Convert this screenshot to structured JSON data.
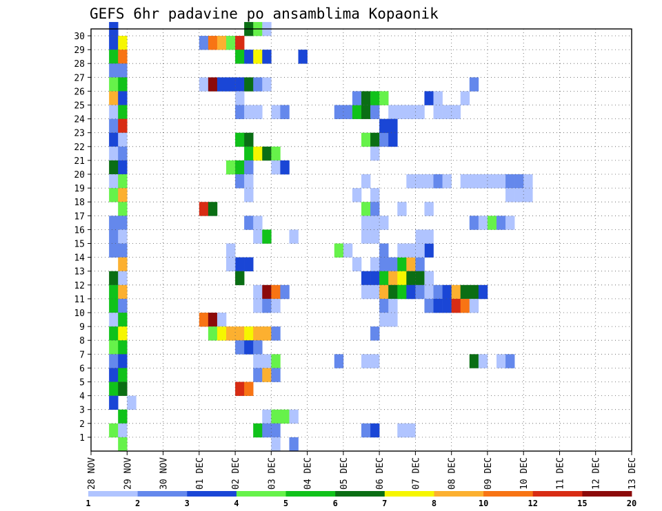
{
  "chart_data": {
    "type": "heatmap",
    "title": "GEFS 6hr padavine po ansamblima Kopaonik",
    "xlabel": "",
    "ylabel": "",
    "x_tick_labels": [
      "28 NOV",
      "29 NOV",
      "30 NOV",
      "01 DEC",
      "02 DEC",
      "03 DEC",
      "04 DEC",
      "05 DEC",
      "06 DEC",
      "07 DEC",
      "08 DEC",
      "09 DEC",
      "10 DEC",
      "11 DEC",
      "12 DEC",
      "13 DEC"
    ],
    "xlim": [
      0,
      60
    ],
    "y_tick_labels": [
      "1",
      "2",
      "3",
      "4",
      "5",
      "6",
      "7",
      "8",
      "9",
      "10",
      "11",
      "12",
      "13",
      "14",
      "15",
      "16",
      "17",
      "18",
      "19",
      "20",
      "21",
      "22",
      "23",
      "24",
      "25",
      "26",
      "27",
      "28",
      "29",
      "30"
    ],
    "ylim": [
      0,
      30
    ],
    "grid": true,
    "colorbar": {
      "labels": [
        "1",
        "2",
        "3",
        "4",
        "5",
        "6",
        "7",
        "8",
        "10",
        "12",
        "15",
        "20"
      ],
      "colors": [
        "#b0c4ff",
        "#6488ec",
        "#1a46d6",
        "#66f24a",
        "#10c21a",
        "#0a6e14",
        "#f6f600",
        "#fcb030",
        "#f87414",
        "#d82c14",
        "#8c0a0a"
      ]
    },
    "cells": [
      [
        2,
        30,
        3
      ],
      [
        2,
        29,
        3
      ],
      [
        3,
        29,
        7
      ],
      [
        2,
        28,
        5
      ],
      [
        3,
        28,
        9
      ],
      [
        2,
        27,
        2
      ],
      [
        3,
        27,
        2
      ],
      [
        2,
        26,
        4
      ],
      [
        3,
        26,
        5
      ],
      [
        2,
        25,
        8
      ],
      [
        3,
        25,
        3
      ],
      [
        2,
        24,
        1
      ],
      [
        3,
        24,
        5
      ],
      [
        2,
        23,
        2
      ],
      [
        3,
        23,
        10
      ],
      [
        2,
        22,
        3
      ],
      [
        3,
        22,
        1
      ],
      [
        2,
        21,
        1
      ],
      [
        3,
        21,
        2
      ],
      [
        2,
        20,
        6
      ],
      [
        3,
        20,
        3
      ],
      [
        2,
        19,
        1
      ],
      [
        3,
        19,
        4
      ],
      [
        2,
        18,
        4
      ],
      [
        3,
        18,
        8
      ],
      [
        3,
        17,
        4
      ],
      [
        2,
        16,
        2
      ],
      [
        3,
        16,
        2
      ],
      [
        2,
        15,
        2
      ],
      [
        3,
        15,
        1
      ],
      [
        2,
        14,
        2
      ],
      [
        3,
        14,
        2
      ],
      [
        3,
        13,
        8
      ],
      [
        2,
        12,
        6
      ],
      [
        3,
        12,
        1
      ],
      [
        2,
        11,
        5
      ],
      [
        3,
        11,
        8
      ],
      [
        2,
        10,
        5
      ],
      [
        3,
        10,
        2
      ],
      [
        2,
        9,
        1
      ],
      [
        3,
        9,
        5
      ],
      [
        2,
        8,
        5
      ],
      [
        3,
        8,
        7
      ],
      [
        2,
        7,
        4
      ],
      [
        3,
        7,
        5
      ],
      [
        2,
        6,
        2
      ],
      [
        3,
        6,
        3
      ],
      [
        2,
        5,
        3
      ],
      [
        3,
        5,
        5
      ],
      [
        2,
        4,
        5
      ],
      [
        3,
        4,
        6
      ],
      [
        2,
        3,
        3
      ],
      [
        4,
        3,
        1
      ],
      [
        3,
        2,
        5
      ],
      [
        2,
        1,
        4
      ],
      [
        3,
        1,
        1
      ],
      [
        3,
        0,
        4
      ],
      [
        12,
        29,
        2
      ],
      [
        13,
        29,
        9
      ],
      [
        14,
        29,
        8
      ],
      [
        15,
        29,
        4
      ],
      [
        16,
        29,
        10
      ],
      [
        17,
        30,
        6
      ],
      [
        18,
        30,
        4
      ],
      [
        19,
        30,
        1
      ],
      [
        16,
        28,
        5
      ],
      [
        17,
        28,
        3
      ],
      [
        18,
        28,
        7
      ],
      [
        19,
        28,
        3
      ],
      [
        23,
        28,
        3
      ],
      [
        12,
        26,
        1
      ],
      [
        13,
        26,
        11
      ],
      [
        14,
        26,
        3
      ],
      [
        15,
        26,
        3
      ],
      [
        16,
        26,
        3
      ],
      [
        17,
        26,
        6
      ],
      [
        18,
        26,
        2
      ],
      [
        19,
        26,
        1
      ],
      [
        16,
        25,
        1
      ],
      [
        16,
        24,
        2
      ],
      [
        17,
        24,
        1
      ],
      [
        18,
        24,
        1
      ],
      [
        20,
        24,
        1
      ],
      [
        21,
        24,
        2
      ],
      [
        16,
        22,
        5
      ],
      [
        17,
        22,
        6
      ],
      [
        17,
        21,
        5
      ],
      [
        18,
        21,
        7
      ],
      [
        19,
        21,
        6
      ],
      [
        20,
        21,
        4
      ],
      [
        15,
        20,
        4
      ],
      [
        16,
        20,
        5
      ],
      [
        17,
        20,
        2
      ],
      [
        20,
        20,
        1
      ],
      [
        21,
        20,
        3
      ],
      [
        16,
        19,
        2
      ],
      [
        17,
        19,
        1
      ],
      [
        17,
        18,
        1
      ],
      [
        12,
        17,
        10
      ],
      [
        13,
        17,
        6
      ],
      [
        17,
        16,
        2
      ],
      [
        18,
        16,
        1
      ],
      [
        18,
        15,
        1
      ],
      [
        19,
        15,
        5
      ],
      [
        22,
        15,
        1
      ],
      [
        15,
        14,
        1
      ],
      [
        16,
        13,
        3
      ],
      [
        17,
        13,
        3
      ],
      [
        15,
        13,
        1
      ],
      [
        16,
        12,
        6
      ],
      [
        18,
        11,
        1
      ],
      [
        19,
        11,
        11
      ],
      [
        20,
        11,
        9
      ],
      [
        21,
        11,
        2
      ],
      [
        18,
        10,
        1
      ],
      [
        19,
        10,
        2
      ],
      [
        20,
        10,
        1
      ],
      [
        12,
        9,
        9
      ],
      [
        13,
        9,
        11
      ],
      [
        14,
        9,
        1
      ],
      [
        13,
        8,
        4
      ],
      [
        14,
        8,
        7
      ],
      [
        15,
        8,
        8
      ],
      [
        16,
        8,
        8
      ],
      [
        17,
        8,
        7
      ],
      [
        18,
        8,
        8
      ],
      [
        19,
        8,
        8
      ],
      [
        20,
        8,
        2
      ],
      [
        16,
        7,
        2
      ],
      [
        17,
        7,
        3
      ],
      [
        18,
        7,
        2
      ],
      [
        18,
        6,
        1
      ],
      [
        19,
        6,
        1
      ],
      [
        20,
        6,
        4
      ],
      [
        18,
        5,
        2
      ],
      [
        19,
        5,
        8
      ],
      [
        20,
        5,
        2
      ],
      [
        16,
        4,
        10
      ],
      [
        17,
        4,
        9
      ],
      [
        19,
        2,
        1
      ],
      [
        20,
        2,
        4
      ],
      [
        21,
        2,
        4
      ],
      [
        22,
        2,
        1
      ],
      [
        18,
        1,
        5
      ],
      [
        19,
        1,
        2
      ],
      [
        20,
        1,
        2
      ],
      [
        20,
        0,
        1
      ],
      [
        22,
        0,
        2
      ],
      [
        27,
        24,
        2
      ],
      [
        28,
        24,
        2
      ],
      [
        29,
        24,
        5
      ],
      [
        30,
        24,
        6
      ],
      [
        31,
        24,
        2
      ],
      [
        29,
        25,
        2
      ],
      [
        30,
        25,
        6
      ],
      [
        31,
        25,
        5
      ],
      [
        32,
        25,
        4
      ],
      [
        33,
        24,
        1
      ],
      [
        30,
        22,
        4
      ],
      [
        31,
        22,
        6
      ],
      [
        32,
        22,
        2
      ],
      [
        33,
        22,
        3
      ],
      [
        31,
        21,
        1
      ],
      [
        30,
        19,
        1
      ],
      [
        29,
        18,
        1
      ],
      [
        31,
        18,
        1
      ],
      [
        30,
        17,
        4
      ],
      [
        31,
        17,
        2
      ],
      [
        30,
        16,
        1
      ],
      [
        31,
        16,
        1
      ],
      [
        32,
        16,
        1
      ],
      [
        27,
        14,
        4
      ],
      [
        28,
        14,
        1
      ],
      [
        32,
        14,
        2
      ],
      [
        36,
        15,
        1
      ],
      [
        37,
        14,
        3
      ],
      [
        29,
        13,
        1
      ],
      [
        31,
        13,
        1
      ],
      [
        32,
        13,
        2
      ],
      [
        33,
        13,
        2
      ],
      [
        34,
        13,
        5
      ],
      [
        35,
        13,
        8
      ],
      [
        36,
        13,
        2
      ],
      [
        36,
        12,
        3
      ],
      [
        37,
        12,
        2
      ],
      [
        30,
        12,
        3
      ],
      [
        31,
        12,
        3
      ],
      [
        32,
        12,
        5
      ],
      [
        33,
        12,
        8
      ],
      [
        34,
        12,
        7
      ],
      [
        35,
        12,
        6
      ],
      [
        36,
        12,
        6
      ],
      [
        37,
        12,
        1
      ],
      [
        30,
        11,
        1
      ],
      [
        31,
        11,
        1
      ],
      [
        32,
        11,
        8
      ],
      [
        33,
        11,
        6
      ],
      [
        34,
        11,
        5
      ],
      [
        35,
        11,
        3
      ],
      [
        36,
        11,
        2
      ],
      [
        37,
        11,
        1
      ],
      [
        38,
        11,
        2
      ],
      [
        39,
        11,
        3
      ],
      [
        40,
        11,
        8
      ],
      [
        41,
        11,
        6
      ],
      [
        42,
        11,
        6
      ],
      [
        43,
        11,
        3
      ],
      [
        32,
        10,
        2
      ],
      [
        33,
        10,
        1
      ],
      [
        37,
        10,
        2
      ],
      [
        38,
        10,
        3
      ],
      [
        39,
        10,
        3
      ],
      [
        40,
        10,
        10
      ],
      [
        41,
        10,
        9
      ],
      [
        42,
        10,
        1
      ],
      [
        32,
        9,
        1
      ],
      [
        33,
        9,
        1
      ],
      [
        31,
        8,
        2
      ],
      [
        27,
        6,
        2
      ],
      [
        30,
        6,
        1
      ],
      [
        31,
        6,
        1
      ],
      [
        42,
        6,
        6
      ],
      [
        43,
        6,
        1
      ],
      [
        45,
        6,
        1
      ],
      [
        46,
        6,
        2
      ],
      [
        30,
        1,
        2
      ],
      [
        31,
        1,
        3
      ],
      [
        34,
        1,
        1
      ],
      [
        35,
        1,
        1
      ],
      [
        32,
        23,
        3
      ],
      [
        33,
        23,
        3
      ],
      [
        34,
        24,
        1
      ],
      [
        35,
        24,
        1
      ],
      [
        36,
        24,
        1
      ],
      [
        38,
        24,
        1
      ],
      [
        37,
        25,
        3
      ],
      [
        38,
        25,
        1
      ],
      [
        39,
        24,
        1
      ],
      [
        40,
        24,
        1
      ],
      [
        41,
        25,
        1
      ],
      [
        42,
        26,
        2
      ],
      [
        35,
        19,
        1
      ],
      [
        36,
        19,
        1
      ],
      [
        37,
        19,
        1
      ],
      [
        38,
        19,
        2
      ],
      [
        39,
        19,
        1
      ],
      [
        41,
        19,
        1
      ],
      [
        42,
        19,
        1
      ],
      [
        43,
        19,
        1
      ],
      [
        44,
        19,
        1
      ],
      [
        45,
        19,
        1
      ],
      [
        46,
        19,
        2
      ],
      [
        47,
        19,
        2
      ],
      [
        48,
        19,
        1
      ],
      [
        46,
        18,
        1
      ],
      [
        47,
        18,
        1
      ],
      [
        48,
        18,
        1
      ],
      [
        34,
        17,
        1
      ],
      [
        37,
        17,
        1
      ],
      [
        42,
        16,
        2
      ],
      [
        43,
        16,
        1
      ],
      [
        44,
        16,
        4
      ],
      [
        45,
        16,
        2
      ],
      [
        46,
        16,
        1
      ],
      [
        37,
        15,
        1
      ],
      [
        36,
        14,
        1
      ],
      [
        30,
        15,
        1
      ],
      [
        31,
        15,
        1
      ],
      [
        34,
        14,
        1
      ],
      [
        35,
        14,
        1
      ]
    ]
  }
}
